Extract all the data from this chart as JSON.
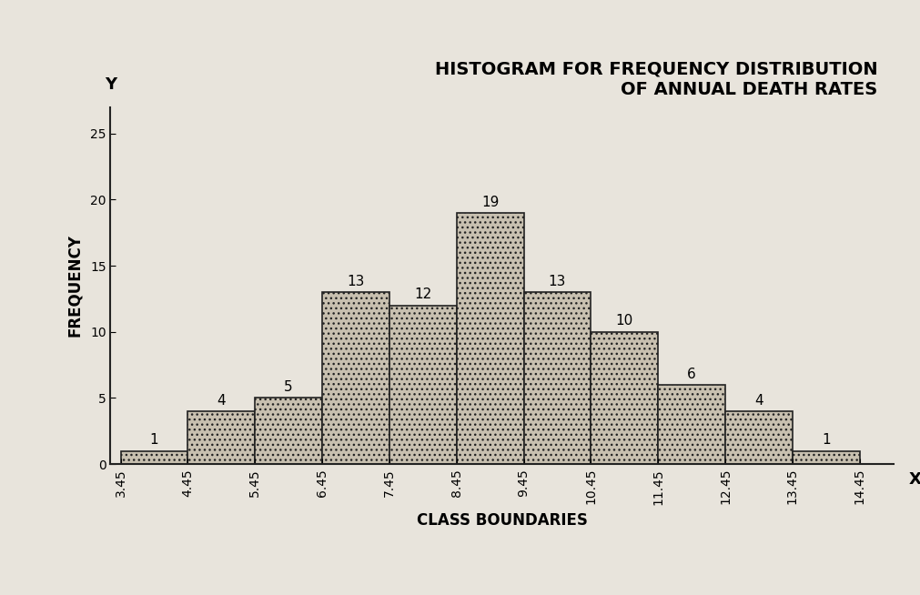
{
  "title": "HISTOGRAM FOR FREQUENCY DISTRIBUTION\nOF ANNUAL DEATH RATES",
  "xlabel": "CLASS BOUNDARIES",
  "ylabel": "FREQUENCY",
  "boundaries": [
    3.45,
    4.45,
    5.45,
    6.45,
    7.45,
    8.45,
    9.45,
    10.45,
    11.45,
    12.45,
    13.45,
    14.45
  ],
  "frequencies": [
    1,
    4,
    5,
    13,
    12,
    19,
    13,
    10,
    6,
    4,
    1
  ],
  "ylim": [
    0,
    27
  ],
  "yticks": [
    0,
    5,
    10,
    15,
    20,
    25
  ],
  "bar_color": "#c8c0b0",
  "bar_edge_color": "#222222",
  "background_color": "#e8e4dc",
  "title_fontsize": 14,
  "axis_label_fontsize": 12,
  "tick_label_fontsize": 10,
  "bar_label_fontsize": 11
}
